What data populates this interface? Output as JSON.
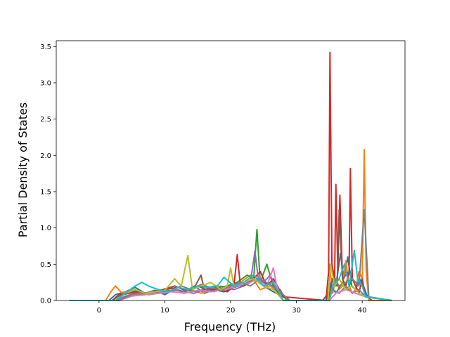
{
  "chart_data": {
    "type": "line",
    "title": "",
    "xlabel": "Frequency (THz)",
    "ylabel": "Partial Density of States",
    "xlim": [
      -6.5,
      46.5
    ],
    "ylim": [
      0.0,
      3.58
    ],
    "xticks": [
      0,
      10,
      20,
      30,
      40
    ],
    "xtick_labels": [
      "0",
      "10",
      "20",
      "30",
      "40"
    ],
    "yticks": [
      0.0,
      0.5,
      1.0,
      1.5,
      2.0,
      2.5,
      3.0,
      3.5
    ],
    "ytick_labels": [
      "0.0",
      "0.5",
      "1.0",
      "1.5",
      "2.0",
      "2.5",
      "3.0",
      "3.5"
    ],
    "grid": false,
    "legend": "none",
    "series": [
      {
        "color": "#1f77b4",
        "x": [
          -4.5,
          1.5,
          2.5,
          4,
          5.5,
          7,
          8.5,
          10,
          11.5,
          13,
          14.5,
          16,
          17.5,
          19,
          20.5,
          22,
          23.5,
          25,
          26.5,
          28,
          29,
          34,
          34.8,
          35.4,
          36,
          36.7,
          37.2,
          37.8,
          38.4,
          39,
          39.6,
          40.2,
          40.8,
          41.5,
          44.5
        ],
        "y": [
          0,
          0,
          0.08,
          0.12,
          0.18,
          0.1,
          0.14,
          0.08,
          0.16,
          0.12,
          0.2,
          0.1,
          0.15,
          0.12,
          0.18,
          0.22,
          0.3,
          0.2,
          0.12,
          0.05,
          0,
          0,
          0.1,
          0.3,
          0.2,
          0.65,
          0.3,
          0.6,
          0.2,
          0.15,
          0.3,
          0.2,
          0.05,
          0,
          0
        ]
      },
      {
        "color": "#ff7f0e",
        "x": [
          -4.5,
          1,
          1.8,
          2.5,
          3.5,
          5,
          6.5,
          8,
          9.5,
          11,
          12.5,
          14,
          15.5,
          17,
          18.5,
          20,
          21.5,
          23,
          24.5,
          26,
          27.5,
          29,
          34.5,
          35,
          35.5,
          36,
          36.5,
          37,
          37.5,
          38,
          38.5,
          39,
          39.5,
          40,
          40.3,
          40.6,
          41,
          44.5
        ],
        "y": [
          0,
          0,
          0.12,
          0.2,
          0.1,
          0.15,
          0.08,
          0.12,
          0.1,
          0.18,
          0.12,
          0.15,
          0.1,
          0.14,
          0.2,
          0.15,
          0.25,
          0.35,
          0.15,
          0.2,
          0.1,
          0,
          0,
          0.5,
          0.1,
          0.3,
          0.15,
          0.2,
          0.55,
          0.2,
          0.1,
          0.15,
          0.4,
          0.3,
          2.08,
          0.4,
          0,
          0
        ]
      },
      {
        "color": "#2ca02c",
        "x": [
          -4.5,
          2,
          3,
          4.5,
          6,
          7.5,
          9,
          10.5,
          12,
          13.5,
          15,
          16.5,
          18,
          19.5,
          21,
          22.5,
          23.5,
          24,
          24.5,
          25.5,
          26.5,
          27.5,
          28.5,
          34.5,
          35.3,
          36,
          37,
          37.8,
          38.5,
          39.5,
          40.5,
          44.5
        ],
        "y": [
          0,
          0,
          0.06,
          0.1,
          0.14,
          0.08,
          0.1,
          0.12,
          0.18,
          0.14,
          0.12,
          0.16,
          0.18,
          0.2,
          0.25,
          0.35,
          0.3,
          0.98,
          0.25,
          0.5,
          0.2,
          0.15,
          0,
          0,
          0.2,
          0.1,
          0.25,
          0.15,
          0.3,
          0.1,
          0.05,
          0
        ]
      },
      {
        "color": "#d62728",
        "x": [
          -4.5,
          2,
          3,
          4.5,
          6,
          7.5,
          9,
          10.5,
          12,
          13.5,
          15,
          16.5,
          18,
          19.5,
          20.5,
          21,
          21.5,
          23,
          24.5,
          25.5,
          26.5,
          28,
          34.5,
          34.9,
          35.1,
          35.4,
          35.8,
          36,
          36.3,
          36.6,
          37,
          37.5,
          38,
          38.2,
          38.5,
          39,
          39.5,
          40,
          40.5,
          44.5
        ],
        "y": [
          0,
          0,
          0.08,
          0.1,
          0.12,
          0.1,
          0.14,
          0.16,
          0.18,
          0.15,
          0.2,
          0.14,
          0.16,
          0.12,
          0.2,
          0.63,
          0.2,
          0.25,
          0.4,
          0.2,
          0.3,
          0.05,
          0,
          0.4,
          3.42,
          0.5,
          0.3,
          1.6,
          0.4,
          1.45,
          0.3,
          0.2,
          0.4,
          1.82,
          0.3,
          0.2,
          0.1,
          0.3,
          0.05,
          0
        ]
      },
      {
        "color": "#9467bd",
        "x": [
          -4.5,
          2.5,
          4,
          5.5,
          7,
          8.5,
          10,
          11.5,
          13,
          14.5,
          16,
          17.5,
          19,
          20.5,
          22,
          23,
          23.7,
          24.2,
          25,
          26,
          27,
          28,
          34.8,
          35.5,
          36.5,
          37.5,
          38.5,
          39.5,
          40.5,
          44.5
        ],
        "y": [
          0,
          0,
          0.06,
          0.1,
          0.08,
          0.12,
          0.1,
          0.14,
          0.12,
          0.1,
          0.16,
          0.12,
          0.18,
          0.15,
          0.2,
          0.25,
          0.68,
          0.3,
          0.25,
          0.35,
          0.15,
          0,
          0,
          0.15,
          0.1,
          0.2,
          0.1,
          0.15,
          0.05,
          0
        ]
      },
      {
        "color": "#8c564b",
        "x": [
          -4.5,
          2.5,
          4,
          5.5,
          7,
          8.5,
          10,
          11.5,
          13,
          14.5,
          15.5,
          16,
          17.5,
          19,
          20.5,
          22,
          23.5,
          25,
          26.5,
          28,
          34.8,
          35.5,
          36.2,
          36.5,
          37,
          38,
          39,
          40,
          40.5,
          44.5
        ],
        "y": [
          0,
          0,
          0.1,
          0.14,
          0.1,
          0.12,
          0.16,
          0.2,
          0.14,
          0.18,
          0.35,
          0.15,
          0.2,
          0.15,
          0.22,
          0.2,
          0.3,
          0.25,
          0.2,
          0,
          0,
          0.3,
          0.2,
          1.25,
          0.3,
          0.4,
          0.2,
          0.25,
          0.05,
          0
        ]
      },
      {
        "color": "#e377c2",
        "x": [
          -4.5,
          3,
          5,
          7,
          9,
          11,
          13,
          15,
          17,
          19,
          21,
          23,
          24,
          25.5,
          26.5,
          27,
          28,
          35,
          36,
          37.5,
          39,
          40.5,
          44.5
        ],
        "y": [
          0,
          0,
          0.06,
          0.08,
          0.1,
          0.12,
          0.1,
          0.14,
          0.12,
          0.15,
          0.2,
          0.25,
          0.3,
          0.2,
          0.45,
          0.2,
          0,
          0,
          0.1,
          0.15,
          0.1,
          0.05,
          0
        ]
      },
      {
        "color": "#7f7f7f",
        "x": [
          -4.5,
          3,
          5,
          7,
          9,
          11,
          12.5,
          14,
          15.5,
          17,
          18.5,
          20,
          21.5,
          23,
          24.5,
          26,
          27.5,
          29,
          35,
          35.8,
          36.5,
          37.5,
          38.5,
          39.5,
          40.3,
          41,
          44.5
        ],
        "y": [
          0,
          0,
          0.08,
          0.1,
          0.12,
          0.14,
          0.2,
          0.15,
          0.22,
          0.18,
          0.14,
          0.2,
          0.25,
          0.2,
          0.3,
          0.22,
          0.12,
          0,
          0,
          0.3,
          0.2,
          0.25,
          0.3,
          0.2,
          1.25,
          0.05,
          0
        ]
      },
      {
        "color": "#bcbd22",
        "x": [
          -4.5,
          2.5,
          4,
          5.5,
          7,
          8.5,
          10,
          11.5,
          12.5,
          13.5,
          14.2,
          15.5,
          17,
          18.5,
          19.5,
          20,
          20.5,
          22,
          23.5,
          25,
          26.5,
          28,
          34.8,
          35.2,
          35.8,
          36.5,
          37.5,
          38.5,
          39.5,
          40.5,
          44.5
        ],
        "y": [
          0,
          0,
          0.1,
          0.15,
          0.1,
          0.12,
          0.14,
          0.3,
          0.2,
          0.62,
          0.15,
          0.2,
          0.25,
          0.15,
          0.2,
          0.45,
          0.2,
          0.25,
          0.3,
          0.2,
          0.15,
          0,
          0,
          0.5,
          0.2,
          0.3,
          0.15,
          0.2,
          0.1,
          0.05,
          0
        ]
      },
      {
        "color": "#17becf",
        "x": [
          -4.5,
          2.5,
          4,
          5.5,
          6.5,
          7.5,
          9,
          10.5,
          12,
          13.5,
          15,
          16.5,
          18,
          19,
          20.5,
          22,
          23.5,
          25,
          26.5,
          28,
          35,
          35.5,
          36.5,
          37.3,
          38,
          38.8,
          39.3,
          40,
          40.5,
          44.5
        ],
        "y": [
          0,
          0,
          0.1,
          0.2,
          0.25,
          0.2,
          0.15,
          0.12,
          0.18,
          0.15,
          0.2,
          0.18,
          0.2,
          0.32,
          0.2,
          0.25,
          0.35,
          0.2,
          0.25,
          0,
          0,
          0.2,
          0.3,
          0.5,
          0.2,
          0.69,
          0.3,
          0.2,
          0.05,
          0
        ]
      }
    ]
  }
}
